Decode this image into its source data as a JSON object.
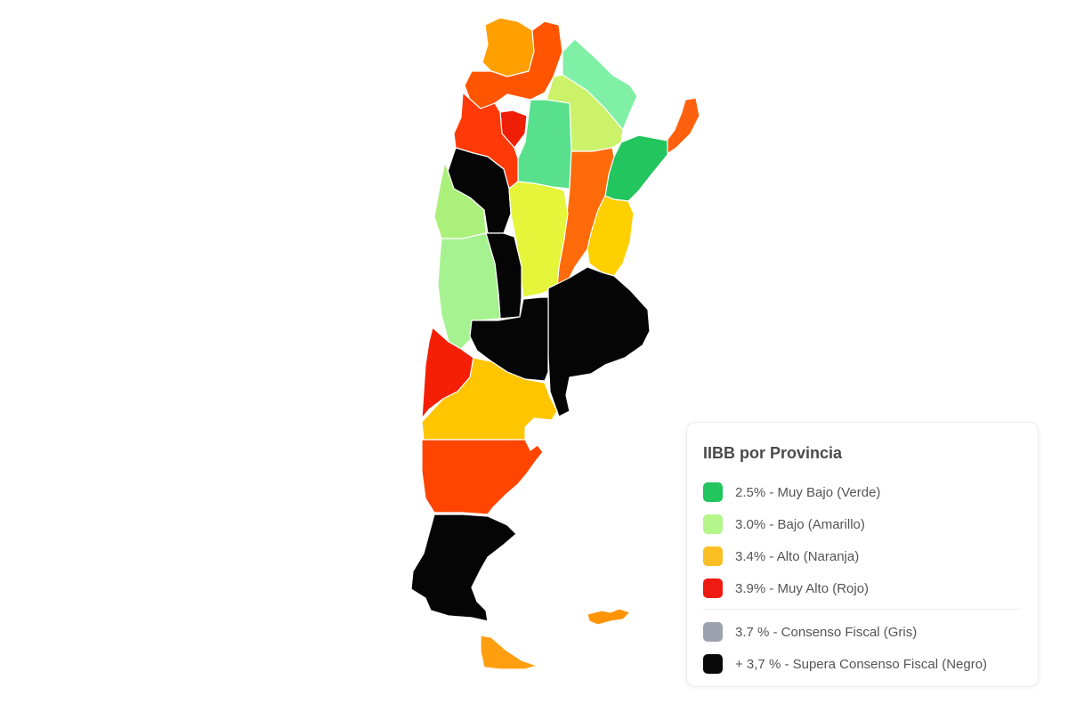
{
  "legend": {
    "title": "IIBB por Provincia",
    "items": [
      {
        "label": "2.5% - Muy Bajo (Verde)",
        "color": "#22c55e"
      },
      {
        "label": "3.0% - Bajo (Amarillo)",
        "color": "#b4f58c"
      },
      {
        "label": "3.4% - Alto (Naranja)",
        "color": "#fbbf24"
      },
      {
        "label": "3.9% - Muy Alto (Rojo)",
        "color": "#ef1a12"
      },
      {
        "label": "3.7 % - Consenso Fiscal (Gris)",
        "color": "#9ca3af"
      },
      {
        "label": "+ 3,7 % - Supera Consenso Fiscal (Negro)",
        "color": "#0a0a0a"
      }
    ]
  },
  "provinces": [
    {
      "id": "jujuy",
      "color": "#ff9f00"
    },
    {
      "id": "salta",
      "color": "#ff5500"
    },
    {
      "id": "formosa",
      "color": "#7ff0a6"
    },
    {
      "id": "chaco",
      "color": "#ccf26a"
    },
    {
      "id": "santiago-del-estero",
      "color": "#58e08c"
    },
    {
      "id": "tucuman",
      "color": "#ee1f05"
    },
    {
      "id": "catamarca",
      "color": "#ff3a08"
    },
    {
      "id": "misiones",
      "color": "#ff6010"
    },
    {
      "id": "corrientes",
      "color": "#22c55e"
    },
    {
      "id": "la-rioja",
      "color": "#050505"
    },
    {
      "id": "santa-fe",
      "color": "#ff6a0a"
    },
    {
      "id": "entre-rios",
      "color": "#ffd000"
    },
    {
      "id": "cordoba",
      "color": "#e4f53a"
    },
    {
      "id": "san-juan",
      "color": "#aaf07a"
    },
    {
      "id": "san-luis",
      "color": "#050505"
    },
    {
      "id": "mendoza",
      "color": "#a6f291"
    },
    {
      "id": "buenos-aires",
      "color": "#050505"
    },
    {
      "id": "la-pampa",
      "color": "#050505"
    },
    {
      "id": "neuquen",
      "color": "#f51f05"
    },
    {
      "id": "rio-negro",
      "color": "#ffc500"
    },
    {
      "id": "chubut",
      "color": "#ff4500"
    },
    {
      "id": "santa-cruz",
      "color": "#050505"
    },
    {
      "id": "tierra-del-fuego",
      "color": "#ff9f10"
    },
    {
      "id": "malvinas",
      "color": "#ff9300"
    }
  ]
}
